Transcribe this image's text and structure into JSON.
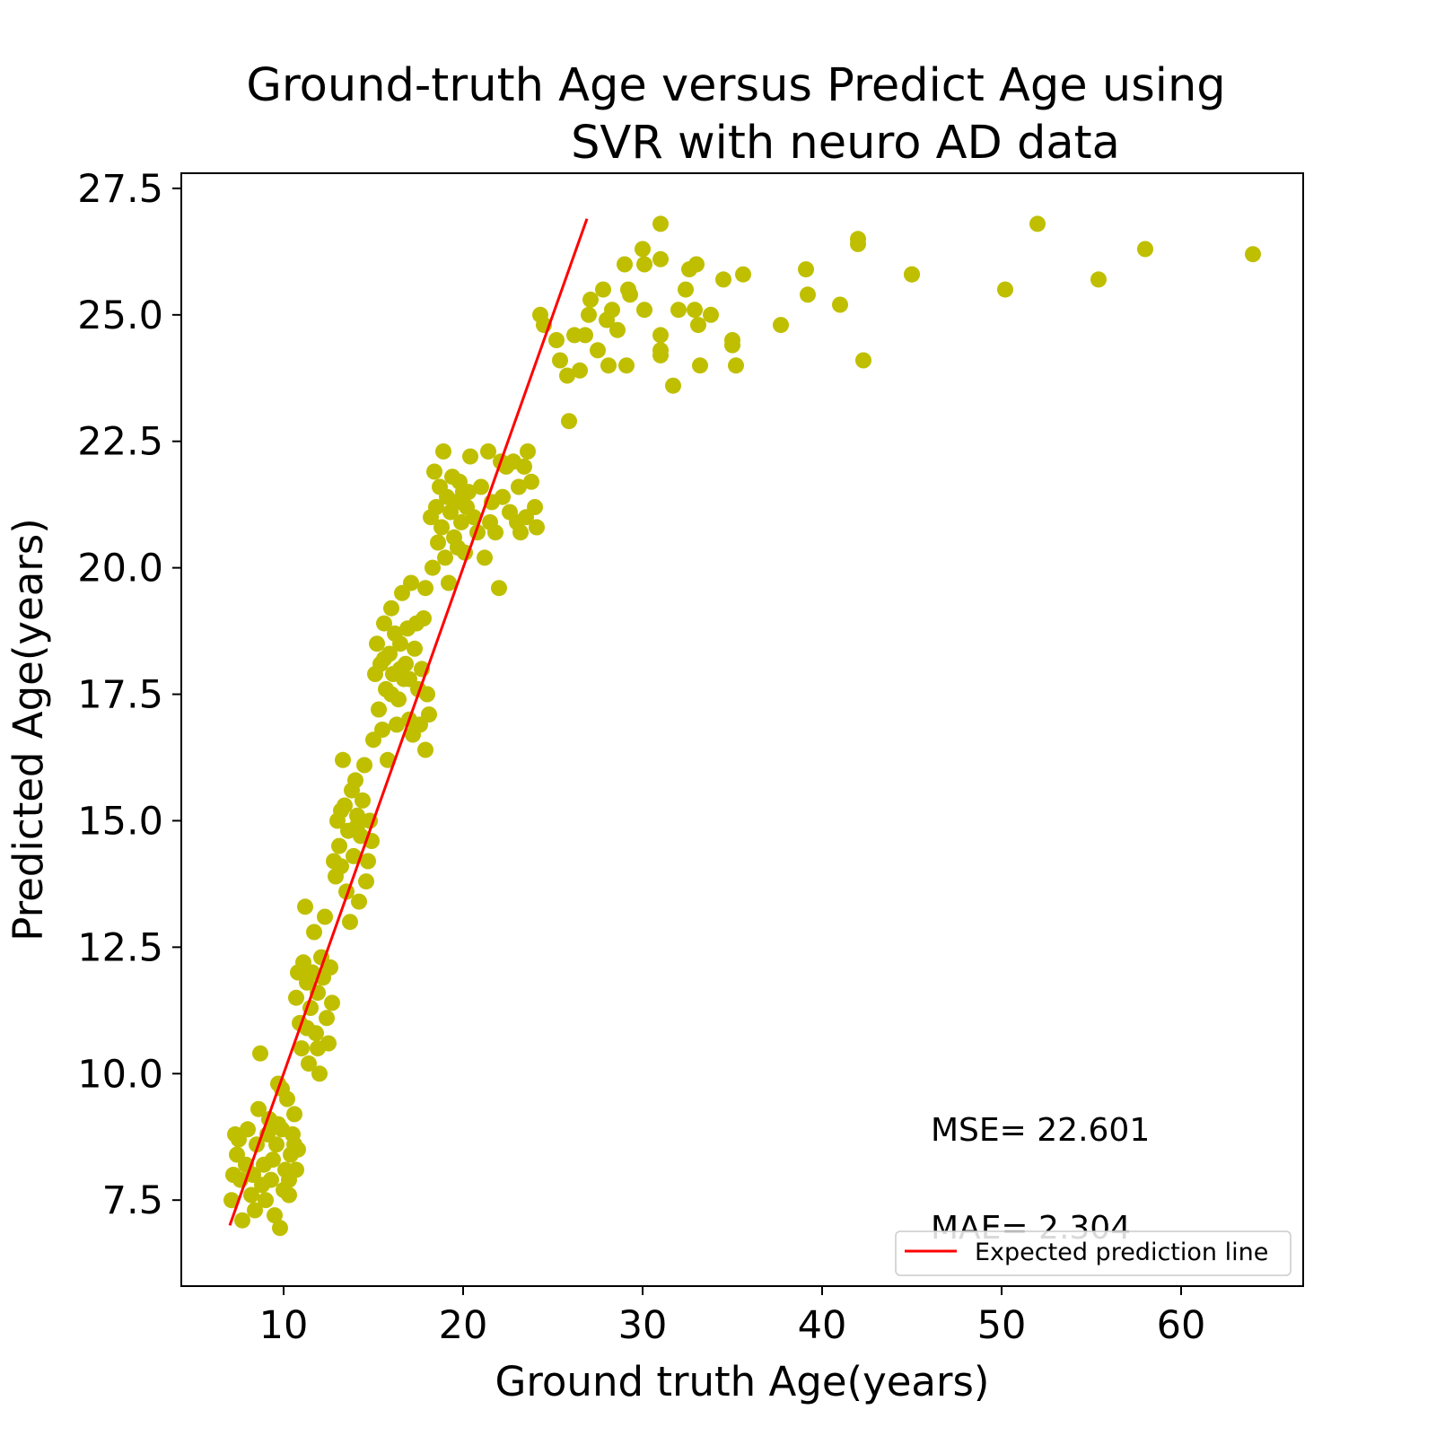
{
  "chart_data": {
    "type": "scatter",
    "title_lines": [
      "Ground-truth Age versus Predict Age using",
      "SVR  with neuro AD data"
    ],
    "xlabel": "Ground truth Age(years)",
    "ylabel": "Predicted Age(years)",
    "xlim": [
      4.3,
      66.8
    ],
    "ylim": [
      5.8,
      27.8
    ],
    "xticks": [
      10,
      20,
      30,
      40,
      50,
      60
    ],
    "yticks": [
      7.5,
      10.0,
      12.5,
      15.0,
      17.5,
      20.0,
      22.5,
      25.0,
      27.5
    ],
    "grid": false,
    "point_color": "#bfbf00",
    "line_color": "#ff0000",
    "legend": {
      "position": "lower-right",
      "entries": [
        "Expected prediction line"
      ]
    },
    "annotations": [
      "MSE= 22.601",
      "MAE= 2.304"
    ],
    "line": {
      "name": "Expected prediction line",
      "x": [
        7.0,
        26.9
      ],
      "y": [
        7.0,
        26.9
      ]
    },
    "points": [
      [
        7.1,
        7.5
      ],
      [
        7.2,
        8.0
      ],
      [
        7.3,
        8.8
      ],
      [
        7.4,
        8.4
      ],
      [
        7.5,
        8.7
      ],
      [
        7.6,
        7.9
      ],
      [
        7.7,
        7.1
      ],
      [
        7.9,
        8.2
      ],
      [
        8.0,
        8.9
      ],
      [
        8.2,
        7.6
      ],
      [
        8.3,
        8.0
      ],
      [
        8.4,
        7.3
      ],
      [
        8.5,
        8.6
      ],
      [
        8.6,
        9.3
      ],
      [
        8.7,
        10.4
      ],
      [
        8.8,
        7.8
      ],
      [
        8.9,
        8.2
      ],
      [
        9.0,
        7.5
      ],
      [
        9.1,
        8.8
      ],
      [
        9.2,
        9.1
      ],
      [
        9.3,
        7.9
      ],
      [
        9.4,
        8.3
      ],
      [
        9.5,
        7.2
      ],
      [
        9.6,
        8.6
      ],
      [
        9.7,
        9.0
      ],
      [
        9.8,
        6.95
      ],
      [
        9.9,
        9.7
      ],
      [
        10.0,
        7.7
      ],
      [
        10.1,
        8.1
      ],
      [
        10.2,
        9.5
      ],
      [
        10.3,
        7.9
      ],
      [
        10.4,
        8.4
      ],
      [
        10.5,
        8.8
      ],
      [
        10.6,
        9.2
      ],
      [
        10.7,
        8.1
      ],
      [
        10.8,
        8.5
      ],
      [
        10.3,
        7.6
      ],
      [
        9.9,
        8.9
      ],
      [
        9.7,
        9.8
      ],
      [
        10.6,
        8.6
      ],
      [
        10.7,
        11.5
      ],
      [
        10.8,
        12.0
      ],
      [
        10.9,
        11.0
      ],
      [
        11.0,
        10.5
      ],
      [
        11.1,
        12.2
      ],
      [
        11.2,
        13.3
      ],
      [
        11.3,
        11.8
      ],
      [
        11.4,
        10.2
      ],
      [
        11.5,
        11.3
      ],
      [
        11.6,
        12.0
      ],
      [
        11.7,
        12.8
      ],
      [
        11.8,
        10.8
      ],
      [
        11.9,
        11.6
      ],
      [
        12.0,
        10.0
      ],
      [
        12.1,
        12.3
      ],
      [
        12.2,
        11.9
      ],
      [
        12.3,
        13.1
      ],
      [
        12.4,
        11.1
      ],
      [
        12.5,
        10.6
      ],
      [
        12.6,
        12.1
      ],
      [
        12.7,
        11.4
      ],
      [
        11.9,
        10.5
      ],
      [
        11.3,
        10.9
      ],
      [
        12.8,
        14.2
      ],
      [
        12.9,
        13.9
      ],
      [
        13.0,
        15.0
      ],
      [
        13.1,
        14.5
      ],
      [
        13.2,
        14.1
      ],
      [
        13.3,
        16.2
      ],
      [
        13.4,
        15.3
      ],
      [
        13.5,
        13.6
      ],
      [
        13.6,
        14.8
      ],
      [
        13.7,
        13.0
      ],
      [
        13.8,
        15.6
      ],
      [
        13.9,
        14.3
      ],
      [
        14.0,
        15.8
      ],
      [
        14.1,
        15.1
      ],
      [
        14.2,
        13.4
      ],
      [
        14.3,
        14.7
      ],
      [
        14.4,
        15.4
      ],
      [
        14.5,
        16.1
      ],
      [
        14.6,
        13.8
      ],
      [
        14.7,
        14.2
      ],
      [
        14.8,
        15.0
      ],
      [
        14.9,
        14.6
      ],
      [
        13.2,
        15.2
      ],
      [
        14.1,
        14.9
      ],
      [
        15.0,
        16.6
      ],
      [
        15.1,
        17.9
      ],
      [
        15.2,
        18.5
      ],
      [
        15.3,
        17.2
      ],
      [
        15.4,
        18.1
      ],
      [
        15.5,
        16.8
      ],
      [
        15.6,
        18.9
      ],
      [
        15.7,
        17.6
      ],
      [
        15.8,
        16.2
      ],
      [
        15.9,
        18.3
      ],
      [
        16.0,
        19.2
      ],
      [
        16.1,
        17.9
      ],
      [
        16.2,
        18.7
      ],
      [
        16.3,
        16.9
      ],
      [
        16.4,
        17.4
      ],
      [
        16.5,
        18.5
      ],
      [
        16.6,
        19.5
      ],
      [
        16.7,
        17.8
      ],
      [
        16.8,
        18.1
      ],
      [
        16.9,
        18.8
      ],
      [
        17.0,
        17.0
      ],
      [
        17.1,
        19.7
      ],
      [
        17.2,
        16.7
      ],
      [
        17.3,
        18.4
      ],
      [
        17.4,
        18.9
      ],
      [
        17.5,
        17.6
      ],
      [
        17.6,
        16.9
      ],
      [
        17.7,
        18.0
      ],
      [
        17.8,
        19.0
      ],
      [
        17.9,
        16.4
      ],
      [
        18.0,
        17.5
      ],
      [
        18.1,
        17.1
      ],
      [
        16.0,
        17.5
      ],
      [
        16.5,
        18.0
      ],
      [
        17.0,
        17.8
      ],
      [
        15.6,
        18.2
      ],
      [
        17.9,
        19.6
      ],
      [
        18.2,
        21.0
      ],
      [
        18.3,
        20.0
      ],
      [
        18.4,
        21.9
      ],
      [
        18.5,
        21.2
      ],
      [
        18.6,
        20.5
      ],
      [
        18.7,
        21.6
      ],
      [
        18.8,
        20.8
      ],
      [
        18.9,
        22.3
      ],
      [
        19.0,
        20.2
      ],
      [
        19.1,
        21.4
      ],
      [
        19.2,
        19.7
      ],
      [
        19.3,
        21.1
      ],
      [
        19.4,
        21.8
      ],
      [
        19.5,
        20.6
      ],
      [
        19.6,
        21.3
      ],
      [
        19.7,
        20.4
      ],
      [
        19.8,
        21.7
      ],
      [
        19.9,
        20.9
      ],
      [
        20.0,
        21.5
      ],
      [
        20.1,
        20.3
      ],
      [
        20.2,
        21.2
      ],
      [
        20.4,
        22.2
      ],
      [
        20.6,
        21.0
      ],
      [
        20.8,
        20.7
      ],
      [
        21.0,
        21.6
      ],
      [
        21.2,
        20.2
      ],
      [
        21.4,
        22.3
      ],
      [
        21.5,
        20.9
      ],
      [
        21.6,
        21.3
      ],
      [
        21.8,
        20.7
      ],
      [
        22.0,
        19.6
      ],
      [
        22.2,
        21.4
      ],
      [
        22.4,
        22.0
      ],
      [
        22.6,
        21.1
      ],
      [
        22.8,
        22.1
      ],
      [
        23.0,
        20.9
      ],
      [
        23.1,
        21.6
      ],
      [
        23.2,
        20.7
      ],
      [
        23.4,
        22.0
      ],
      [
        23.6,
        22.3
      ],
      [
        23.8,
        21.7
      ],
      [
        24.0,
        21.2
      ],
      [
        24.1,
        20.8
      ],
      [
        23.5,
        21.0
      ],
      [
        22.1,
        22.1
      ],
      [
        20.3,
        21.5
      ],
      [
        24.3,
        25.0
      ],
      [
        24.5,
        24.8
      ],
      [
        25.2,
        24.5
      ],
      [
        25.4,
        24.1
      ],
      [
        25.8,
        23.8
      ],
      [
        25.9,
        22.9
      ],
      [
        26.2,
        24.6
      ],
      [
        26.5,
        23.9
      ],
      [
        26.8,
        24.6
      ],
      [
        27.0,
        25.0
      ],
      [
        27.1,
        25.3
      ],
      [
        27.5,
        24.3
      ],
      [
        27.8,
        25.5
      ],
      [
        28.0,
        24.9
      ],
      [
        28.1,
        24.0
      ],
      [
        28.3,
        25.1
      ],
      [
        28.6,
        24.7
      ],
      [
        29.0,
        26.0
      ],
      [
        29.1,
        24.0
      ],
      [
        29.3,
        25.4
      ],
      [
        29.2,
        25.5
      ],
      [
        30.0,
        26.3
      ],
      [
        30.1,
        25.1
      ],
      [
        30.1,
        26.0
      ],
      [
        31.0,
        26.8
      ],
      [
        31.0,
        26.1
      ],
      [
        31.0,
        24.6
      ],
      [
        31.0,
        24.3
      ],
      [
        31.0,
        24.2
      ],
      [
        31.7,
        23.6
      ],
      [
        32.0,
        25.1
      ],
      [
        32.4,
        25.5
      ],
      [
        32.6,
        25.9
      ],
      [
        32.9,
        25.1
      ],
      [
        33.0,
        26.0
      ],
      [
        33.1,
        24.8
      ],
      [
        33.2,
        24.0
      ],
      [
        33.8,
        25.0
      ],
      [
        34.5,
        25.7
      ],
      [
        35.0,
        24.5
      ],
      [
        35.0,
        24.4
      ],
      [
        35.2,
        24.0
      ],
      [
        35.6,
        25.8
      ],
      [
        37.7,
        24.8
      ],
      [
        39.1,
        25.9
      ],
      [
        39.2,
        25.4
      ],
      [
        41.0,
        25.2
      ],
      [
        42.0,
        26.5
      ],
      [
        42.0,
        26.4
      ],
      [
        42.3,
        24.1
      ],
      [
        45.0,
        25.8
      ],
      [
        45.0,
        25.8
      ],
      [
        50.2,
        25.5
      ],
      [
        52.0,
        26.8
      ],
      [
        55.4,
        25.7
      ],
      [
        58.0,
        26.3
      ],
      [
        64.0,
        26.2
      ]
    ]
  }
}
